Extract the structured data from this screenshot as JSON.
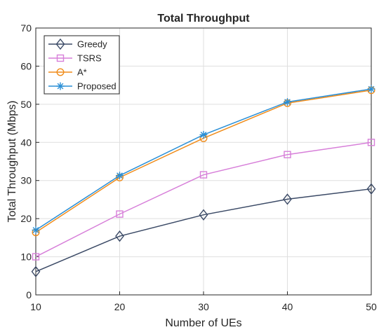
{
  "chart_data": {
    "type": "line",
    "title": "Total Throughput",
    "xlabel": "Number of UEs",
    "ylabel": "Total Throughput (Mbps)",
    "xlim": [
      10,
      50
    ],
    "ylim": [
      0,
      70
    ],
    "x_ticks": [
      10,
      20,
      30,
      40,
      50
    ],
    "y_ticks": [
      0,
      10,
      20,
      30,
      40,
      50,
      60,
      70
    ],
    "grid": true,
    "legend_position": "top-left",
    "x": [
      10,
      20,
      30,
      40,
      50
    ],
    "series": [
      {
        "name": "Greedy",
        "values": [
          6.1,
          15.4,
          21.0,
          25.1,
          27.8
        ],
        "color": "#3b4a66",
        "marker": "diamond"
      },
      {
        "name": "TSRS",
        "values": [
          10.0,
          21.2,
          31.5,
          36.8,
          40.0
        ],
        "color": "#d77fd9",
        "marker": "square"
      },
      {
        "name": "A*",
        "values": [
          16.4,
          30.8,
          41.1,
          50.3,
          53.7
        ],
        "color": "#f08c1a",
        "marker": "circle"
      },
      {
        "name": "Proposed",
        "values": [
          17.0,
          31.3,
          42.0,
          50.6,
          54.0
        ],
        "color": "#2a8fd6",
        "marker": "asterisk"
      }
    ]
  }
}
